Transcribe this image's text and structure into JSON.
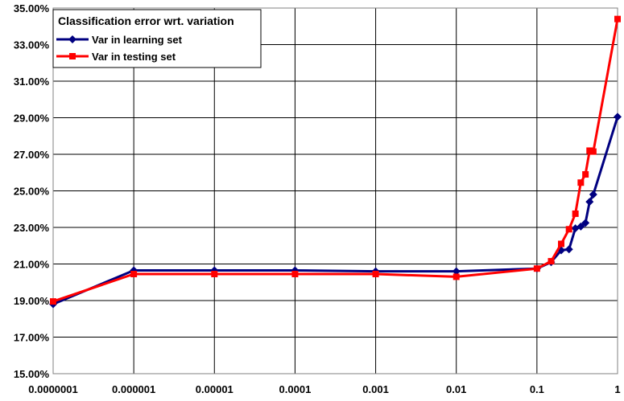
{
  "chart_data": {
    "type": "line",
    "title": "Classification error wrt. variation",
    "xlabel": "",
    "ylabel": "",
    "x_scale": "log",
    "x_ticks": [
      "0.0000001",
      "0.000001",
      "0.00001",
      "0.0001",
      "0.001",
      "0.01",
      "0.1",
      "1"
    ],
    "y_ticks": [
      "15.00%",
      "17.00%",
      "19.00%",
      "21.00%",
      "23.00%",
      "25.00%",
      "27.00%",
      "29.00%",
      "31.00%",
      "33.00%",
      "35.00%"
    ],
    "ylim": [
      0.15,
      0.35
    ],
    "grid": true,
    "legend_position": "top-left",
    "series": [
      {
        "name": "Var in learning set",
        "color": "#000080",
        "marker": "diamond",
        "points": [
          [
            1e-07,
            0.188
          ],
          [
            1e-06,
            0.2065
          ],
          [
            1e-05,
            0.2065
          ],
          [
            0.0001,
            0.2065
          ],
          [
            0.001,
            0.206
          ],
          [
            0.01,
            0.206
          ],
          [
            0.1,
            0.2075
          ],
          [
            0.15,
            0.211
          ],
          [
            0.2,
            0.2175
          ],
          [
            0.25,
            0.218
          ],
          [
            0.3,
            0.2295
          ],
          [
            0.35,
            0.2305
          ],
          [
            0.4,
            0.2325
          ],
          [
            0.45,
            0.244
          ],
          [
            0.5,
            0.248
          ],
          [
            1,
            0.2905
          ]
        ]
      },
      {
        "name": "Var in testing set",
        "color": "#ff0000",
        "marker": "square",
        "points": [
          [
            1e-07,
            0.1895
          ],
          [
            1e-06,
            0.2045
          ],
          [
            1e-05,
            0.2045
          ],
          [
            0.0001,
            0.2045
          ],
          [
            0.001,
            0.2045
          ],
          [
            0.01,
            0.203
          ],
          [
            0.1,
            0.2075
          ],
          [
            0.15,
            0.2115
          ],
          [
            0.2,
            0.221
          ],
          [
            0.25,
            0.229
          ],
          [
            0.3,
            0.2375
          ],
          [
            0.35,
            0.2545
          ],
          [
            0.4,
            0.259
          ],
          [
            0.45,
            0.272
          ],
          [
            0.5,
            0.2715
          ],
          [
            1,
            0.344
          ]
        ]
      }
    ]
  }
}
